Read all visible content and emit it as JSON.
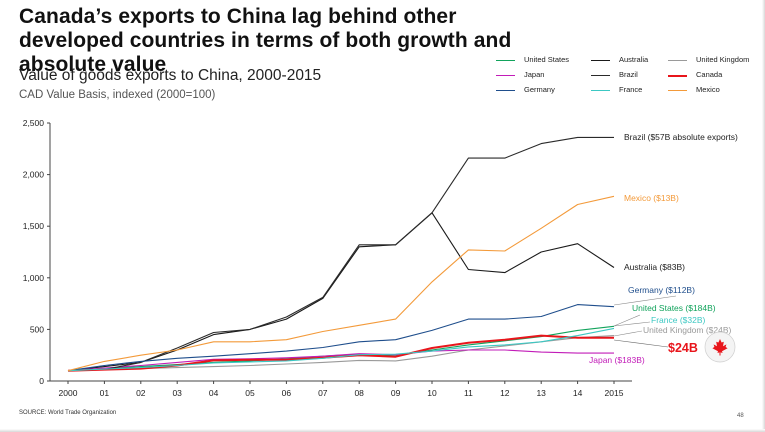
{
  "header": {
    "title": "Canada’s exports to China lag behind other developed countries in terms of both growth and absolute value",
    "subtitle": "Value of goods exports to China, 2000-2015",
    "basis": "CAD Value Basis, indexed (2000=100)"
  },
  "footer": {
    "source": "SOURCE: World Trade Organization",
    "page": "48"
  },
  "canada_badge": {
    "value_label": "$24B",
    "flag_icon": "canada-flag-icon",
    "accent": "#e8151b"
  },
  "chart_data": {
    "type": "line",
    "x": [
      "2000",
      "01",
      "02",
      "03",
      "04",
      "05",
      "06",
      "07",
      "08",
      "09",
      "10",
      "11",
      "12",
      "13",
      "14",
      "2015"
    ],
    "ylim": [
      0,
      2500
    ],
    "yticks": [
      "0",
      "500",
      "1,000",
      "1,500",
      "2,000",
      "2,500"
    ],
    "grid": false,
    "legend_position": "top-right",
    "series": [
      {
        "name": "United States",
        "color": "#12a35c",
        "label": "United States ($184B)",
        "values": [
          100,
          120,
          140,
          160,
          180,
          195,
          215,
          240,
          260,
          250,
          300,
          350,
          390,
          430,
          490,
          530
        ]
      },
      {
        "name": "Australia",
        "color": "#1a1a1a",
        "label": "Australia ($83B)",
        "values": [
          100,
          140,
          180,
          300,
          450,
          500,
          600,
          800,
          1300,
          1320,
          1630,
          1080,
          1050,
          1250,
          1330,
          1100
        ]
      },
      {
        "name": "United Kingdom",
        "color": "#9a9a9a",
        "label": "United Kingdom ($24B)",
        "values": [
          100,
          110,
          120,
          130,
          140,
          150,
          165,
          180,
          200,
          195,
          240,
          300,
          340,
          380,
          420,
          440
        ]
      },
      {
        "name": "Japan",
        "color": "#c21cb8",
        "label": "Japan ($183B)",
        "values": [
          100,
          125,
          150,
          180,
          210,
          215,
          225,
          240,
          265,
          255,
          290,
          300,
          300,
          280,
          270,
          270
        ]
      },
      {
        "name": "Brazil",
        "color": "#2a2a2a",
        "label": "Brazil ($57B absolute exports)",
        "values": [
          100,
          110,
          180,
          320,
          470,
          500,
          620,
          810,
          1320,
          1320,
          1630,
          2160,
          2160,
          2300,
          2360,
          2360
        ]
      },
      {
        "name": "Canada",
        "color": "#e8151b",
        "label": "",
        "values": [
          100,
          110,
          120,
          150,
          200,
          205,
          205,
          225,
          250,
          235,
          320,
          370,
          400,
          440,
          420,
          420
        ]
      },
      {
        "name": "Germany",
        "color": "#1f4e8c",
        "label": "Germany ($112B)",
        "values": [
          100,
          150,
          190,
          220,
          240,
          265,
          290,
          325,
          380,
          400,
          490,
          600,
          600,
          625,
          740,
          720
        ]
      },
      {
        "name": "France",
        "color": "#3cc8c3",
        "label": "France ($32B)",
        "values": [
          100,
          115,
          130,
          150,
          175,
          185,
          195,
          220,
          255,
          260,
          290,
          330,
          350,
          380,
          440,
          510
        ]
      },
      {
        "name": "Mexico",
        "color": "#f39a3a",
        "label": "Mexico ($13B)",
        "values": [
          100,
          190,
          250,
          300,
          380,
          380,
          400,
          480,
          540,
          600,
          960,
          1270,
          1260,
          1480,
          1710,
          1790
        ]
      }
    ]
  }
}
